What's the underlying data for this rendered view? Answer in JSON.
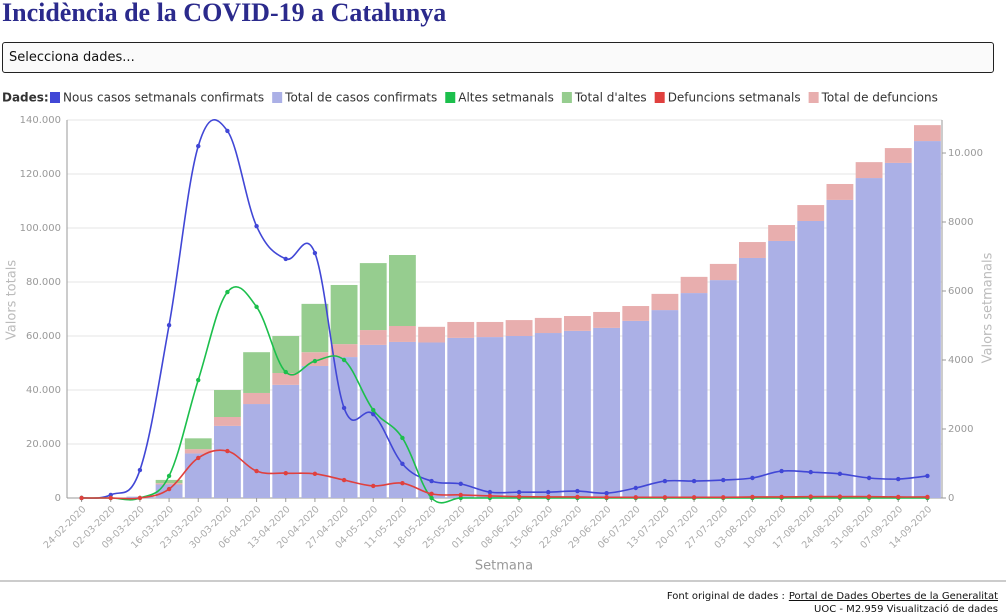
{
  "title": "Incidència de la COVID-19 a Catalunya",
  "selector": {
    "placeholder": "Selecciona dades..."
  },
  "chart_data": {
    "type": "combo",
    "legend_title": "Dades:",
    "x_label": "Setmana",
    "y_label": "Valors totals",
    "y2_label": "Valors setmanals",
    "categories": [
      "24-02-2020",
      "02-03-2020",
      "09-03-2020",
      "16-03-2020",
      "23-03-2020",
      "30-03-2020",
      "06-04-2020",
      "13-04-2020",
      "20-04-2020",
      "27-04-2020",
      "04-05-2020",
      "11-05-2020",
      "18-05-2020",
      "25-05-2020",
      "01-06-2020",
      "08-06-2020",
      "15-06-2020",
      "22-06-2020",
      "29-06-2020",
      "06-07-2020",
      "13-07-2020",
      "20-07-2020",
      "27-07-2020",
      "03-08-2020",
      "10-08-2020",
      "17-08-2020",
      "24-08-2020",
      "31-08-2020",
      "07-09-2020",
      "14-09-2020"
    ],
    "ylim": [
      0,
      140000
    ],
    "yticks": [
      0,
      {
        "value": 20000,
        "label": "20.000"
      },
      {
        "value": 40000,
        "label": "40.000"
      },
      {
        "value": 60000,
        "label": "60.000"
      },
      {
        "value": 80000,
        "label": "80.000"
      },
      {
        "value": 100000,
        "label": "100.000"
      },
      {
        "value": 120000,
        "label": "120.000"
      },
      {
        "value": 140000,
        "label": "140.000"
      }
    ],
    "y2lim": [
      0,
      10957
    ],
    "y2ticks": [
      0,
      2000,
      4000,
      6000,
      8000,
      {
        "value": 10000,
        "label": "10.000"
      }
    ],
    "grid": true,
    "series": [
      {
        "name": "Nous casos setmanals confirmats",
        "type": "line",
        "axis": "y2",
        "color": "#4147d6",
        "values": [
          0,
          90,
          810,
          5010,
          10200,
          10640,
          7880,
          6930,
          7100,
          2610,
          2430,
          990,
          490,
          410,
          170,
          170,
          170,
          200,
          140,
          290,
          490,
          490,
          520,
          580,
          780,
          750,
          700,
          580,
          550,
          640
        ]
      },
      {
        "name": "Total de casos confirmats",
        "type": "bar",
        "color": "#abb0e6",
        "values": [
          0,
          100,
          500,
          5000,
          16500,
          26700,
          34800,
          41900,
          48900,
          52200,
          56700,
          57800,
          57600,
          59300,
          59600,
          60000,
          61100,
          61900,
          63000,
          65600,
          69600,
          75900,
          80700,
          88900,
          95200,
          102600,
          110400,
          118500,
          124100,
          132200
        ]
      },
      {
        "name": "Altes setmanals",
        "type": "line",
        "axis": "y2",
        "color": "#1cbf4c",
        "values": [
          0,
          0,
          0,
          640,
          3420,
          5970,
          5540,
          3650,
          3970,
          4000,
          2550,
          1740,
          0,
          0,
          0,
          0,
          0,
          0,
          0,
          0,
          0,
          0,
          0,
          0,
          0,
          0,
          0,
          0,
          0,
          0
        ]
      },
      {
        "name": "Total d'altes",
        "type": "bar",
        "color": "#96cd8f",
        "values": [
          0,
          0,
          0,
          1200,
          4000,
          10000,
          15100,
          13700,
          17900,
          21900,
          24800,
          26300,
          0,
          0,
          0,
          0,
          0,
          0,
          0,
          0,
          0,
          0,
          0,
          0,
          0,
          0,
          0,
          0,
          0,
          0
        ]
      },
      {
        "name": "Defuncions setmanals",
        "type": "line",
        "axis": "y2",
        "color": "#e0403e",
        "values": [
          0,
          0,
          0,
          260,
          1160,
          1360,
          780,
          720,
          700,
          520,
          350,
          430,
          120,
          90,
          60,
          40,
          30,
          30,
          20,
          20,
          20,
          20,
          20,
          30,
          30,
          40,
          40,
          40,
          30,
          30
        ]
      },
      {
        "name": "Total de defuncions",
        "type": "bar",
        "color": "#e8aeae",
        "values": [
          0,
          0,
          0,
          500,
          1600,
          3300,
          4100,
          4400,
          5100,
          4800,
          5500,
          5900,
          5800,
          5900,
          5600,
          5900,
          5600,
          5500,
          5900,
          5500,
          6000,
          6000,
          6000,
          5900,
          5900,
          5900,
          5900,
          5900,
          5500,
          5900
        ]
      }
    ]
  },
  "footer": {
    "source_prefix": "Font original de dades :",
    "source_link": "Portal de Dades Obertes de la Generalitat",
    "credit": "UOC - M2.959 Visualització de dades"
  }
}
